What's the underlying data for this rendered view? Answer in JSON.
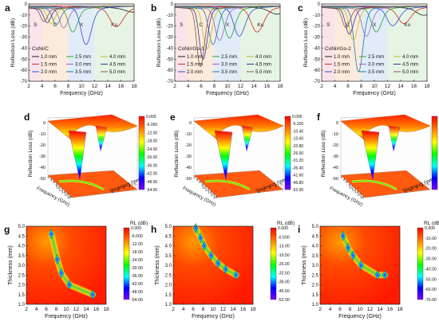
{
  "figure": {
    "row1": {
      "x_label": "Frequency (GHz)",
      "y_label": "Reflection Loss (dB)",
      "x_ticks": [
        "2",
        "4",
        "6",
        "8",
        "10",
        "12",
        "14",
        "16",
        "18"
      ],
      "y_ticks": [
        "0",
        "-10",
        "-20",
        "-30",
        "-40",
        "-50",
        "-60",
        "-70"
      ],
      "band_labels": [
        "S",
        "C",
        "X",
        "Ku"
      ],
      "legend": [
        "1.0 mm",
        "1.5 mm",
        "2.0 mm",
        "2.5 mm",
        "3.0 mm",
        "3.5 mm",
        "4.0 mm",
        "4.5 mm",
        "5.0 mm"
      ],
      "series_colors": [
        "#1f1f1f",
        "#d62728",
        "#2b4cd6",
        "#2ca02c",
        "#9467bd",
        "#1f77b4",
        "#bcbd22",
        "#333399",
        "#8c564b"
      ],
      "band_colors": {
        "S": "#fbe3ea",
        "C": "#fbebdc",
        "X": "#e2ecf8",
        "Ku": "#e6f4e3"
      },
      "panels": [
        {
          "letter": "a",
          "sample": "CoNi/C"
        },
        {
          "letter": "b",
          "sample": "CoNi/rGo-1"
        },
        {
          "letter": "c",
          "sample": "CoNi/rGo-2"
        }
      ]
    },
    "row2": {
      "z_label": "Reflection Loss (dB)",
      "freq_label": "Frequency (GHz)",
      "thick_label": "Thickness (mm)",
      "z_ticks": [
        "0",
        "-10",
        "-20",
        "-30",
        "-40",
        "-50"
      ],
      "freq_ticks": [
        "2",
        "4",
        "6",
        "8",
        "10",
        "12",
        "14",
        "16",
        "18"
      ],
      "thick_ticks": [
        "1",
        "2",
        "3",
        "4",
        "5"
      ],
      "panels": [
        {
          "letter": "d",
          "colorbar": [
            "0.000",
            "-6.000",
            "-12.00",
            "-18.00",
            "-24.00",
            "-30.00",
            "-36.00",
            "-42.00",
            "-48.00",
            "-54.00"
          ]
        },
        {
          "letter": "e",
          "colorbar": [
            "0.000",
            "-5.200",
            "-10.40",
            "-15.60",
            "-20.80",
            "-26.00",
            "-31.20",
            "-36.40",
            "-41.60",
            "-46.80",
            "-52.00"
          ]
        },
        {
          "letter": "f",
          "colorbar": [
            "0.000",
            "-10.00",
            "-20.00",
            "-30.00",
            "-40.00",
            "-50.00",
            "-60.00",
            "-70.00"
          ]
        }
      ]
    },
    "row3": {
      "x_label": "Frequency (GHz)",
      "y_label": "Thickness (mm)",
      "cb_title": "RL (dB)",
      "x_ticks": [
        "2",
        "4",
        "6",
        "8",
        "10",
        "12",
        "14",
        "16",
        "18"
      ],
      "y_ticks": [
        "1.0",
        "1.5",
        "2.0",
        "2.5",
        "3.0",
        "3.5",
        "4.0",
        "4.5",
        "5.0"
      ],
      "panels": [
        {
          "letter": "g",
          "colorbar": [
            "0.000",
            "-6.000",
            "-12.00",
            "-18.00",
            "-24.00",
            "-30.00",
            "-36.00",
            "-42.00",
            "-48.00",
            "-54.00"
          ]
        },
        {
          "letter": "h",
          "colorbar": [
            "0.000",
            "-6.500",
            "-13.00",
            "-19.50",
            "-26.00",
            "-32.50",
            "-39.00",
            "-45.50",
            "-52.00"
          ]
        },
        {
          "letter": "i",
          "colorbar": [
            "0.000",
            "-10.00",
            "-20.00",
            "-30.00",
            "-40.00",
            "-50.00",
            "-60.00",
            "-70.00"
          ]
        }
      ]
    },
    "colormap": [
      "#ff0000",
      "#ff8000",
      "#ffff00",
      "#00ff00",
      "#00ffff",
      "#0000ff",
      "#8000ff"
    ]
  },
  "chart_data": [
    {
      "type": "line",
      "title": "",
      "sample": "CoNi/C",
      "xlabel": "Frequency (GHz)",
      "ylabel": "Reflection Loss (dB)",
      "xlim": [
        2,
        18
      ],
      "ylim": [
        -70,
        0
      ],
      "series": [
        {
          "name": "1.0 mm",
          "dip_freq": 17.8,
          "min_rl": -3
        },
        {
          "name": "1.5 mm",
          "dip_freq": 15.3,
          "min_rl": -17
        },
        {
          "name": "2.0 mm",
          "dip_freq": 10.7,
          "min_rl": -34
        },
        {
          "name": "2.5 mm",
          "dip_freq": 8.7,
          "min_rl": -22
        },
        {
          "name": "3.0 mm",
          "dip_freq": 7.3,
          "min_rl": -18
        },
        {
          "name": "3.5 mm",
          "dip_freq": 6.2,
          "min_rl": -15
        },
        {
          "name": "4.0 mm",
          "dip_freq": 5.4,
          "min_rl": -14
        },
        {
          "name": "4.5 mm",
          "dip_freq": 4.8,
          "min_rl": -13
        },
        {
          "name": "5.0 mm",
          "dip_freq": 4.3,
          "min_rl": -12
        }
      ]
    },
    {
      "type": "line",
      "title": "",
      "sample": "CoNi/rGo-1",
      "xlabel": "Frequency (GHz)",
      "ylabel": "Reflection Loss (dB)",
      "xlim": [
        2,
        18
      ],
      "ylim": [
        -70,
        0
      ],
      "series": [
        {
          "name": "1.0 mm",
          "dip_freq": 17.5,
          "min_rl": -5
        },
        {
          "name": "1.5 mm",
          "dip_freq": 14.5,
          "min_rl": -22
        },
        {
          "name": "2.0 mm",
          "dip_freq": 11.8,
          "min_rl": -26
        },
        {
          "name": "2.5 mm",
          "dip_freq": 10.3,
          "min_rl": -28
        },
        {
          "name": "3.0 mm",
          "dip_freq": 8.8,
          "min_rl": -30
        },
        {
          "name": "3.5 mm",
          "dip_freq": 7.8,
          "min_rl": -34
        },
        {
          "name": "4.0 mm",
          "dip_freq": 6.9,
          "min_rl": -38
        },
        {
          "name": "4.5 mm",
          "dip_freq": 6.3,
          "min_rl": -48
        },
        {
          "name": "5.0 mm",
          "dip_freq": 5.9,
          "min_rl": -55
        }
      ]
    },
    {
      "type": "line",
      "title": "",
      "sample": "CoNi/rGo-2",
      "xlabel": "Frequency (GHz)",
      "ylabel": "Reflection Loss (dB)",
      "xlim": [
        2,
        18
      ],
      "ylim": [
        -70,
        0
      ],
      "series": [
        {
          "name": "1.0 mm",
          "dip_freq": 17.5,
          "min_rl": -6
        },
        {
          "name": "1.5 mm",
          "dip_freq": 14.5,
          "min_rl": -14
        },
        {
          "name": "2.0 mm",
          "dip_freq": 12.8,
          "min_rl": -16
        },
        {
          "name": "2.5 mm",
          "dip_freq": 10.3,
          "min_rl": -22
        },
        {
          "name": "3.0 mm",
          "dip_freq": 8.8,
          "min_rl": -26
        },
        {
          "name": "3.5 mm",
          "dip_freq": 7.6,
          "min_rl": -60
        },
        {
          "name": "4.0 mm",
          "dip_freq": 6.8,
          "min_rl": -30
        },
        {
          "name": "4.5 mm",
          "dip_freq": 6.2,
          "min_rl": -24
        },
        {
          "name": "5.0 mm",
          "dip_freq": 5.7,
          "min_rl": -18
        }
      ]
    },
    {
      "type": "surface",
      "title": "",
      "sample": "CoNi/C",
      "xlabel": "Frequency (GHz)",
      "ylabel": "Thickness (mm)",
      "zlabel": "Reflection Loss (dB)",
      "zlim": [
        -54,
        0
      ]
    },
    {
      "type": "surface",
      "title": "",
      "sample": "CoNi/rGo-1",
      "xlabel": "Frequency (GHz)",
      "ylabel": "Thickness (mm)",
      "zlabel": "Reflection Loss (dB)",
      "zlim": [
        -52,
        0
      ]
    },
    {
      "type": "surface",
      "title": "",
      "sample": "CoNi/rGo-2",
      "xlabel": "Frequency (GHz)",
      "ylabel": "Thickness (mm)",
      "zlabel": "Reflection Loss (dB)",
      "zlim": [
        -70,
        0
      ]
    },
    {
      "type": "heatmap",
      "title": "",
      "sample": "CoNi/C",
      "xlabel": "Frequency (GHz)",
      "ylabel": "Thickness (mm)",
      "xlim": [
        2,
        18
      ],
      "ylim": [
        1,
        5
      ],
      "zlim": [
        -54,
        0
      ],
      "minima": [
        {
          "freq": 7.0,
          "thick": 4.6
        },
        {
          "freq": 8.2,
          "thick": 3.3
        },
        {
          "freq": 9.0,
          "thick": 2.6
        },
        {
          "freq": 10.6,
          "thick": 2.0
        },
        {
          "freq": 15.3,
          "thick": 1.5
        }
      ]
    },
    {
      "type": "heatmap",
      "title": "",
      "sample": "CoNi/rGo-1",
      "xlabel": "Frequency (GHz)",
      "ylabel": "Thickness (mm)",
      "xlim": [
        2,
        18
      ],
      "ylim": [
        1,
        5
      ],
      "zlim": [
        -52,
        0
      ],
      "minima": [
        {
          "freq": 6.5,
          "thick": 4.9
        },
        {
          "freq": 7.5,
          "thick": 4.4
        },
        {
          "freq": 8.2,
          "thick": 4.0
        },
        {
          "freq": 9.6,
          "thick": 3.5
        },
        {
          "freq": 11.0,
          "thick": 3.1
        },
        {
          "freq": 12.5,
          "thick": 2.8
        },
        {
          "freq": 14.6,
          "thick": 2.5
        }
      ]
    },
    {
      "type": "heatmap",
      "title": "",
      "sample": "CoNi/rGo-2",
      "xlabel": "Frequency (GHz)",
      "ylabel": "Thickness (mm)",
      "xlim": [
        2,
        18
      ],
      "ylim": [
        1,
        5
      ],
      "zlim": [
        -70,
        0
      ],
      "minima": [
        {
          "freq": 6.6,
          "thick": 4.5
        },
        {
          "freq": 7.6,
          "thick": 3.9
        },
        {
          "freq": 8.6,
          "thick": 3.5
        },
        {
          "freq": 10.2,
          "thick": 3.0
        },
        {
          "freq": 13.5,
          "thick": 2.5
        },
        {
          "freq": 15.0,
          "thick": 2.5
        }
      ]
    }
  ]
}
